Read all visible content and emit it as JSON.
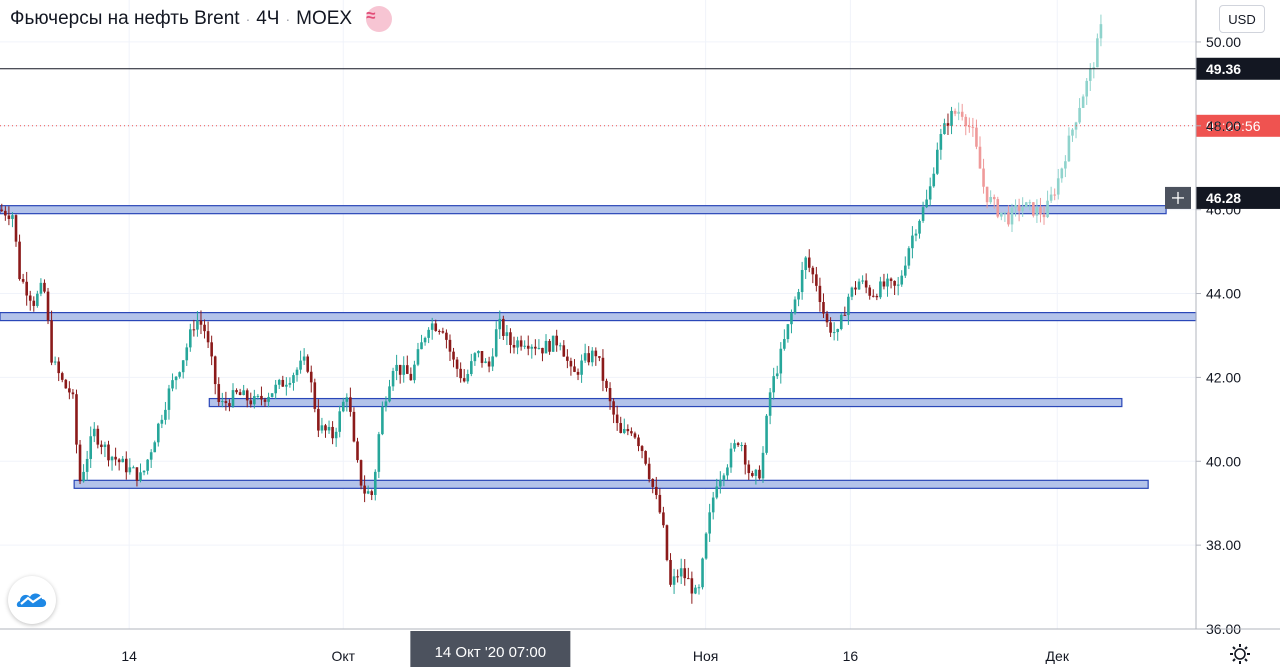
{
  "header": {
    "instrument": "Фьючерсы на нефть Brent",
    "sep1": "·",
    "interval": "4Ч",
    "sep2": "·",
    "exchange": "MOEX",
    "indicator_symbol": "≈"
  },
  "currency_label": "USD",
  "logo_icon": "tradingview-cloud-icon",
  "settings_icon": "gear-icon",
  "colors": {
    "up": "#26a69a",
    "down": "#8b1a1a",
    "future_up": "#8fd3cc",
    "future_down": "#ef9a9a",
    "level_fill": "#b3c3ea",
    "level_stroke": "#2a47b8",
    "countdown": "#ef5350"
  },
  "chart_data": {
    "type": "candlestick",
    "title": "Фьючерсы на нефть Brent",
    "ylim": [
      36,
      51
    ],
    "y_ticks": [
      "36.00",
      "38.00",
      "40.00",
      "42.00",
      "44.00",
      "46.00",
      "48.00",
      "50.00"
    ],
    "x_ticks": [
      "14",
      "Окт",
      "Ноя",
      "16",
      "Дек"
    ],
    "x_tick_pos": [
      0.108,
      0.287,
      0.59,
      0.711,
      0.884
    ],
    "crosshair_time": "14 Окт '20   07:00",
    "crosshair_x": 0.41,
    "price_levels": [
      {
        "price": 49.36,
        "label": "49.36",
        "style": "last-price"
      },
      {
        "price": 46.28,
        "label": "46.28",
        "style": "crosshair"
      },
      {
        "price": 48.0,
        "label": "03:26:56",
        "style": "countdown"
      }
    ],
    "support_resistance": [
      {
        "price": 46.0,
        "x_start": 0.0,
        "x_end": 0.975
      },
      {
        "price": 43.45,
        "x_start": 0.0,
        "x_end": 1.0
      },
      {
        "price": 41.4,
        "x_start": 0.175,
        "x_end": 0.938
      },
      {
        "price": 39.45,
        "x_start": 0.062,
        "x_end": 0.96
      }
    ],
    "anchors": [
      [
        0.0,
        46.0
      ],
      [
        0.012,
        45.9
      ],
      [
        0.018,
        44.4
      ],
      [
        0.03,
        43.8
      ],
      [
        0.038,
        44.2
      ],
      [
        0.045,
        42.4
      ],
      [
        0.055,
        41.8
      ],
      [
        0.062,
        41.6
      ],
      [
        0.068,
        39.5
      ],
      [
        0.08,
        40.7
      ],
      [
        0.092,
        40.2
      ],
      [
        0.105,
        39.9
      ],
      [
        0.12,
        39.6
      ],
      [
        0.13,
        40.5
      ],
      [
        0.142,
        41.6
      ],
      [
        0.155,
        42.5
      ],
      [
        0.165,
        43.4
      ],
      [
        0.172,
        43.2
      ],
      [
        0.178,
        42.4
      ],
      [
        0.185,
        41.3
      ],
      [
        0.2,
        41.6
      ],
      [
        0.215,
        41.4
      ],
      [
        0.235,
        41.8
      ],
      [
        0.258,
        42.4
      ],
      [
        0.268,
        40.8
      ],
      [
        0.28,
        40.6
      ],
      [
        0.292,
        41.7
      ],
      [
        0.298,
        40.2
      ],
      [
        0.305,
        39.3
      ],
      [
        0.313,
        39.2
      ],
      [
        0.32,
        41.1
      ],
      [
        0.33,
        42.3
      ],
      [
        0.345,
        42.0
      ],
      [
        0.36,
        43.3
      ],
      [
        0.372,
        43.2
      ],
      [
        0.38,
        42.4
      ],
      [
        0.39,
        41.9
      ],
      [
        0.4,
        42.6
      ],
      [
        0.41,
        42.2
      ],
      [
        0.418,
        43.3
      ],
      [
        0.428,
        42.8
      ],
      [
        0.44,
        42.9
      ],
      [
        0.455,
        42.7
      ],
      [
        0.47,
        42.9
      ],
      [
        0.48,
        42.0
      ],
      [
        0.49,
        42.4
      ],
      [
        0.5,
        42.6
      ],
      [
        0.51,
        41.5
      ],
      [
        0.52,
        40.6
      ],
      [
        0.53,
        40.8
      ],
      [
        0.54,
        40.2
      ],
      [
        0.548,
        39.3
      ],
      [
        0.555,
        38.6
      ],
      [
        0.562,
        37.0
      ],
      [
        0.57,
        37.4
      ],
      [
        0.578,
        37.1
      ],
      [
        0.585,
        36.7
      ],
      [
        0.592,
        38.2
      ],
      [
        0.6,
        39.5
      ],
      [
        0.61,
        40.0
      ],
      [
        0.62,
        40.6
      ],
      [
        0.63,
        39.5
      ],
      [
        0.638,
        39.8
      ],
      [
        0.645,
        41.6
      ],
      [
        0.655,
        42.6
      ],
      [
        0.665,
        43.7
      ],
      [
        0.675,
        44.8
      ],
      [
        0.685,
        44.2
      ],
      [
        0.692,
        43.3
      ],
      [
        0.702,
        43.0
      ],
      [
        0.71,
        43.9
      ],
      [
        0.72,
        44.3
      ],
      [
        0.73,
        44.0
      ],
      [
        0.742,
        44.2
      ],
      [
        0.752,
        44.1
      ],
      [
        0.762,
        45.2
      ],
      [
        0.77,
        45.8
      ],
      [
        0.778,
        46.3
      ],
      [
        0.785,
        47.5
      ],
      [
        0.795,
        48.2
      ],
      [
        0.805,
        48.4
      ],
      [
        0.815,
        47.8
      ],
      [
        0.825,
        46.4
      ],
      [
        0.835,
        46.0
      ],
      [
        0.845,
        45.8
      ],
      [
        0.855,
        46.1
      ],
      [
        0.865,
        46.0
      ],
      [
        0.875,
        45.9
      ],
      [
        0.885,
        46.6
      ],
      [
        0.895,
        47.6
      ],
      [
        0.905,
        48.6
      ],
      [
        0.915,
        49.4
      ],
      [
        0.922,
        50.3
      ]
    ],
    "last_solid_x": 0.8
  }
}
